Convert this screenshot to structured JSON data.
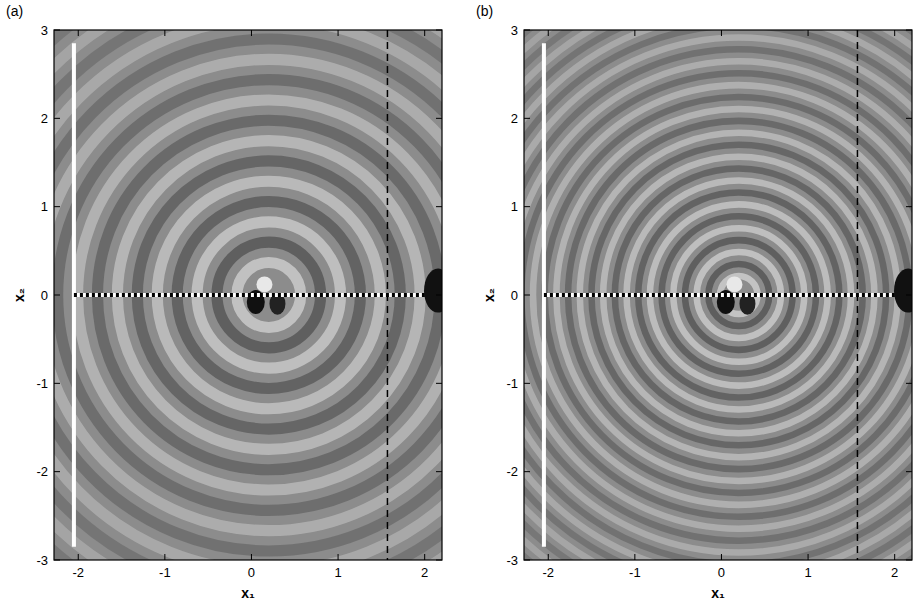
{
  "chart_data": [
    {
      "type": "contour",
      "panel_label": "(a)",
      "xlabel": "x₁",
      "ylabel": "x₂",
      "xlim": [
        -2.28,
        2.2
      ],
      "ylim": [
        -3,
        3
      ],
      "xticks": [
        -2,
        -1,
        0,
        1,
        2
      ],
      "yticks": [
        -3,
        -2,
        -1,
        0,
        1,
        2,
        3
      ],
      "reference_x": 1.57
    },
    {
      "type": "contour",
      "panel_label": "(b)",
      "xlabel": "x₁",
      "ylabel": "x₂",
      "xlim": [
        -2.28,
        2.2
      ],
      "ylim": [
        -3,
        3
      ],
      "xticks": [
        -2,
        -1,
        0,
        1,
        2
      ],
      "yticks": [
        -3,
        -2,
        -1,
        0,
        1,
        2,
        3
      ],
      "reference_x": 1.57
    }
  ]
}
